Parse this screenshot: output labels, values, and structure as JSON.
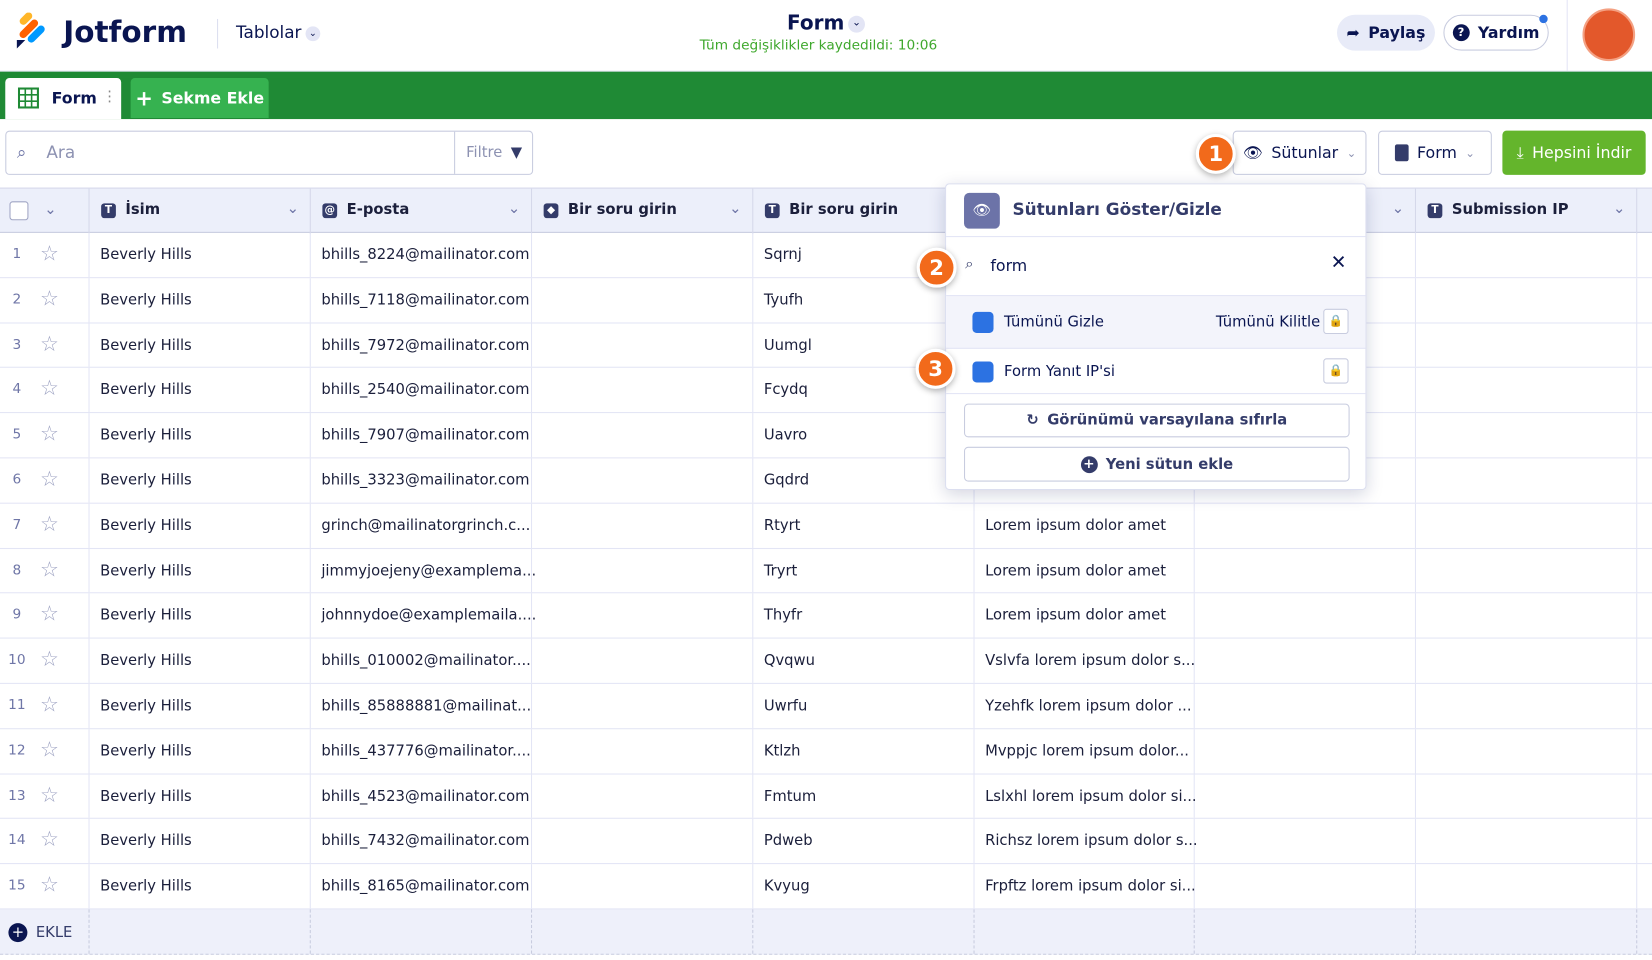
{
  "header": {
    "logo": "Jotform",
    "menu": "Tablolar",
    "title": "Form",
    "saved": "Tüm değişiklikler kaydedildi: 10:06",
    "share": "Paylaş",
    "help": "Yardım"
  },
  "tabs": [
    "Form",
    "Sekme Ekle"
  ],
  "toolbar": {
    "search": "Ara",
    "filter": "Filtre",
    "columns": "Sütunlar",
    "form": "Form",
    "download": "Hepsini İndir"
  },
  "table": {
    "columns": [
      "İsim",
      "E-posta",
      "Bir soru girin",
      "Bir soru girin",
      "Submission IP"
    ],
    "rows": [
      [
        1,
        "Beverly Hills",
        "bhills_8224@mailinator.com",
        "Sqrnj"
      ],
      [
        2,
        "Beverly Hills",
        "bhills_7118@mailinator.com",
        "Tyufh"
      ],
      [
        3,
        "Beverly Hills",
        "bhills_7972@mailinator.com",
        "Uumgl"
      ],
      [
        4,
        "Beverly Hills",
        "bhills_2540@mailinator.com",
        "Fcydq"
      ],
      [
        5,
        "Beverly Hills",
        "bhills_7907@mailinator.com",
        "Uavro"
      ],
      [
        6,
        "Beverly Hills",
        "bhills_3323@mailinator.com",
        "Gqdrd"
      ],
      [
        7,
        "Beverly Hills",
        "grinch@mailinatorgrinch.c...",
        "Rtyrt",
        "Lorem ipsum dolor amet"
      ],
      [
        8,
        "Beverly Hills",
        "jimmyjoejeny@examplema...",
        "Tryrt",
        "Lorem ipsum dolor amet"
      ],
      [
        9,
        "Beverly Hills",
        "johnnydoe@examplemaila....",
        "Thyfr",
        "Lorem ipsum dolor amet"
      ],
      [
        10,
        "Beverly Hills",
        "bhills_010002@mailinator....",
        "Qvqwu",
        "Vslvfa lorem ipsum dolor s..."
      ],
      [
        11,
        "Beverly Hills",
        "bhills_85888881@mailinat...",
        "Uwrfu",
        "Yzehfk lorem ipsum dolor ..."
      ],
      [
        12,
        "Beverly Hills",
        "bhills_437776@mailinator....",
        "Ktlzh",
        "Mvppjc lorem ipsum dolor..."
      ],
      [
        13,
        "Beverly Hills",
        "bhills_4523@mailinator.com",
        "Fmtum",
        "Lslxhl lorem ipsum dolor si..."
      ],
      [
        14,
        "Beverly Hills",
        "bhills_7432@mailinator.com",
        "Pdweb",
        "Richsz lorem ipsum dolor s..."
      ],
      [
        15,
        "Beverly Hills",
        "bhills_8165@mailinator.com",
        "Kvyug",
        "Frpftz lorem ipsum dolor si..."
      ]
    ],
    "add": "EKLE"
  },
  "popup": {
    "title": "Sütunları Göster/Gizle",
    "search": "form",
    "hide_all": "Tümünü Gizle",
    "lock_all": "Tümünü Kilitle",
    "item": "Form Yanıt IP'si",
    "reset": "Görünümü varsayılana sıfırla",
    "add_column": "Yeni sütun ekle"
  },
  "badges": [
    "1",
    "2",
    "3"
  ]
}
